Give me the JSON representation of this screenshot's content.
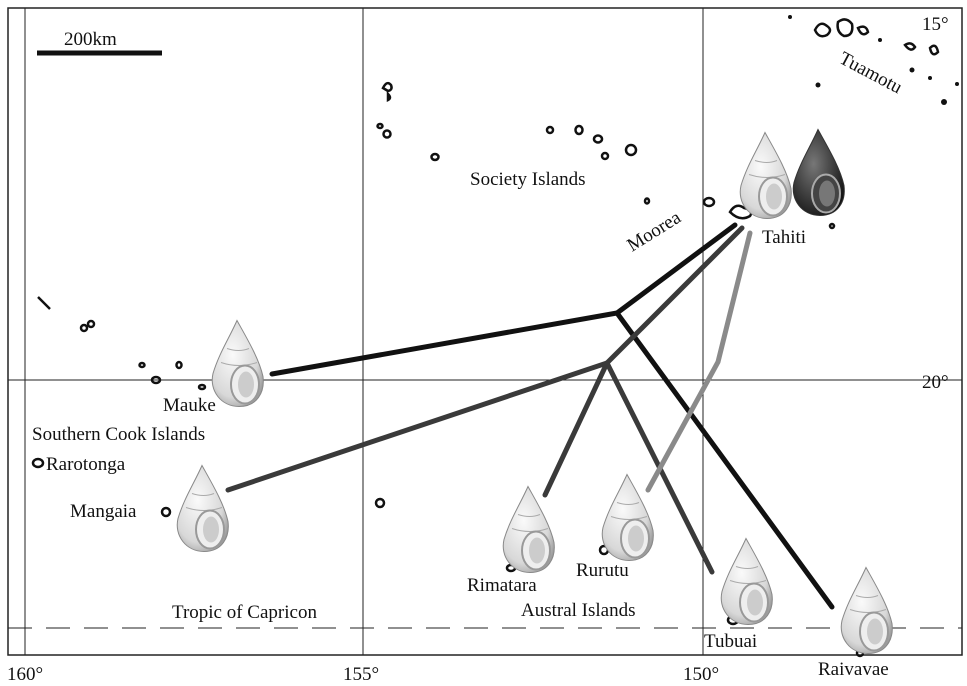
{
  "scale_bar": {
    "label": "200km"
  },
  "latitudes": [
    "15°",
    "20°"
  ],
  "longitudes": [
    "160°",
    "155°",
    "150°"
  ],
  "places": {
    "tuamotu": "Tuamotu",
    "society": "Society Islands",
    "moorea": "Moorea",
    "tahiti": "Tahiti",
    "mauke": "Mauke",
    "cook": "Southern Cook Islands",
    "rarotonga": "Rarotonga",
    "mangaia": "Mangaia",
    "rimatara": "Rimatara",
    "rurutu": "Rurutu",
    "austral": "Austral Islands",
    "tubuai": "Tubuai",
    "raivavae": "Raivavae"
  },
  "tropic": "Tropic of Capricon"
}
